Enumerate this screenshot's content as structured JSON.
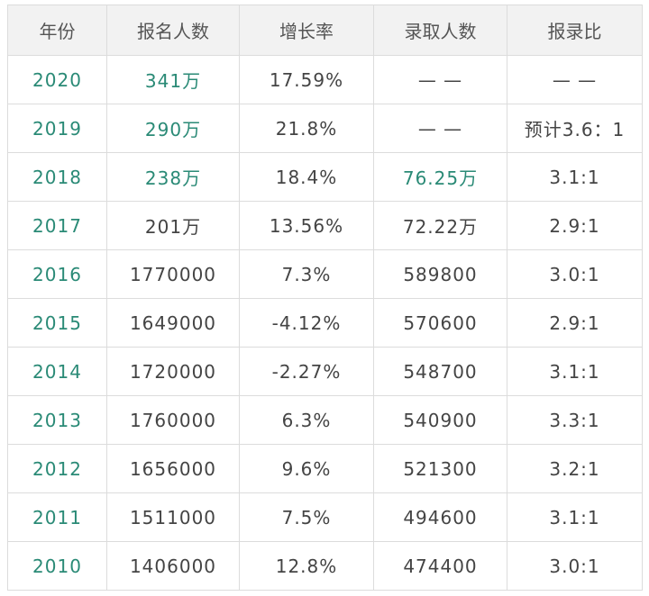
{
  "table": {
    "header": [
      "年份",
      "报名人数",
      "增长率",
      "录取人数",
      "报录比"
    ],
    "rows": [
      [
        "2020",
        "341万",
        "17.59%",
        "— —",
        "— —"
      ],
      [
        "2019",
        "290万",
        "21.8%",
        "— —",
        "预计3.6：1"
      ],
      [
        "2018",
        "238万",
        "18.4%",
        "76.25万",
        "3.1:1"
      ],
      [
        "2017",
        "201万",
        "13.56%",
        "72.22万",
        "2.9:1"
      ],
      [
        "2016",
        "1770000",
        "7.3%",
        "589800",
        "3.0:1"
      ],
      [
        "2015",
        "1649000",
        "-4.12%",
        "570600",
        "2.9:1"
      ],
      [
        "2014",
        "1720000",
        "-2.27%",
        "548700",
        "3.1:1"
      ],
      [
        "2013",
        "1760000",
        "6.3%",
        "540900",
        "3.3:1"
      ],
      [
        "2012",
        "1656000",
        "9.6%",
        "521300",
        "3.2:1"
      ],
      [
        "2011",
        "1511000",
        "7.5%",
        "494600",
        "3.1:1"
      ],
      [
        "2010",
        "1406000",
        "12.8%",
        "474400",
        "3.0:1"
      ]
    ]
  }
}
